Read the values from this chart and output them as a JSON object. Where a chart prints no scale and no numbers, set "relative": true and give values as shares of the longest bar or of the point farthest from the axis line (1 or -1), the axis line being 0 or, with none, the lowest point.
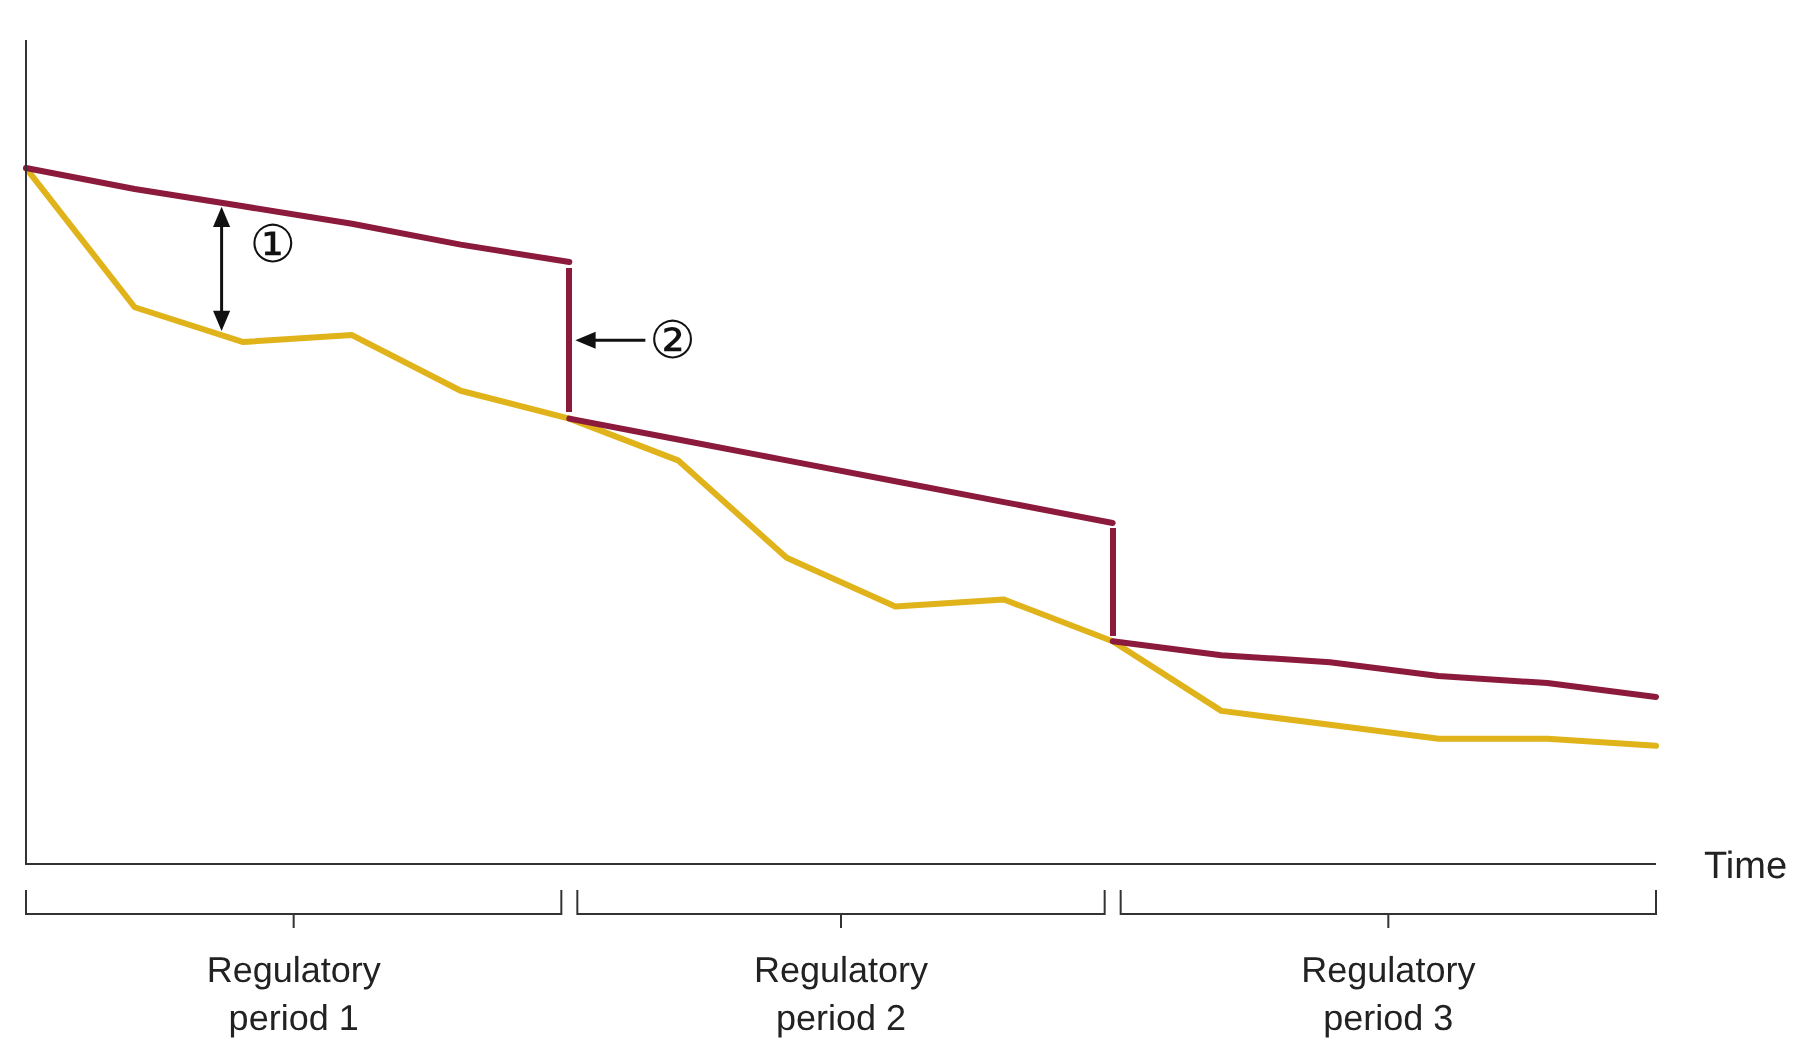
{
  "chart_data": {
    "type": "line",
    "relative": true,
    "xlabel": "Time",
    "legend": false,
    "marker": "none",
    "categories": [
      null,
      null,
      null,
      null,
      null,
      null,
      null,
      null,
      null,
      null,
      null,
      null,
      null,
      null,
      null,
      null
    ],
    "series": [
      {
        "color": "#8b1a3c",
        "values": [
          1,
          0.97,
          0.945,
          0.92,
          0.89,
          0.865,
          null,
          null,
          null,
          null,
          null,
          null,
          null,
          null,
          null,
          null
        ]
      },
      {
        "color": "#8b1a3c",
        "values": [
          null,
          null,
          null,
          null,
          null,
          0.64,
          0.61,
          0.58,
          0.55,
          0.52,
          0.49,
          null,
          null,
          null,
          null,
          null
        ]
      },
      {
        "color": "#8b1a3c",
        "values": [
          null,
          null,
          null,
          null,
          null,
          null,
          null,
          null,
          null,
          null,
          0.32,
          0.3,
          0.29,
          0.27,
          0.26,
          0.24
        ]
      },
      {
        "color": "#e0b31a",
        "values": [
          1,
          0.8,
          0.75,
          0.76,
          0.68,
          0.64,
          0.58,
          0.44,
          0.37,
          0.38,
          0.32,
          0.22,
          0.2,
          0.18,
          0.18,
          0.17
        ]
      }
    ],
    "annotations": [
      "①",
      "②",
      "Regulatory period 1",
      "Regulatory period 2",
      "Regulatory period 3"
    ]
  }
}
